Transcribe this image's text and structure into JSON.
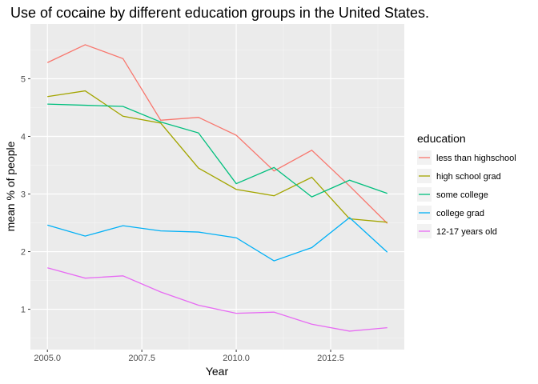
{
  "chart_data": {
    "type": "line",
    "title": "Use of cocaine by different education groups in the United States.",
    "xlabel": "Year",
    "ylabel": "mean % of people",
    "xlim": [
      2004.55,
      2014.45
    ],
    "ylim": [
      0.3,
      5.95
    ],
    "x_ticks": [
      2005.0,
      2007.5,
      2010.0,
      2012.5
    ],
    "x_tick_labels": [
      "2005.0",
      "2007.5",
      "2010.0",
      "2012.5"
    ],
    "y_ticks": [
      1,
      2,
      3,
      4,
      5
    ],
    "y_tick_labels": [
      "1",
      "2",
      "3",
      "4",
      "5"
    ],
    "grid": true,
    "legend_title": "education",
    "legend_position": "right",
    "x": [
      2005,
      2006,
      2007,
      2008,
      2009,
      2010,
      2011,
      2012,
      2013,
      2014
    ],
    "series": [
      {
        "name": "less than highschool",
        "color": "#F8766D",
        "values": [
          5.28,
          5.59,
          5.35,
          4.28,
          4.33,
          4.02,
          3.4,
          3.76,
          3.14,
          2.49
        ]
      },
      {
        "name": "high school grad",
        "color": "#A3A500",
        "values": [
          4.69,
          4.79,
          4.35,
          4.23,
          3.45,
          3.08,
          2.97,
          3.29,
          2.57,
          2.51
        ]
      },
      {
        "name": "some college",
        "color": "#00BF7D",
        "values": [
          4.56,
          4.54,
          4.52,
          4.25,
          4.06,
          3.18,
          3.46,
          2.95,
          3.24,
          3.01
        ]
      },
      {
        "name": "college grad",
        "color": "#00B0F6",
        "values": [
          2.46,
          2.27,
          2.45,
          2.36,
          2.34,
          2.24,
          1.84,
          2.07,
          2.59,
          1.99
        ]
      },
      {
        "name": "12-17 years old",
        "color": "#E76BF3",
        "values": [
          1.72,
          1.54,
          1.58,
          1.3,
          1.07,
          0.93,
          0.95,
          0.74,
          0.62,
          0.68
        ]
      }
    ]
  }
}
